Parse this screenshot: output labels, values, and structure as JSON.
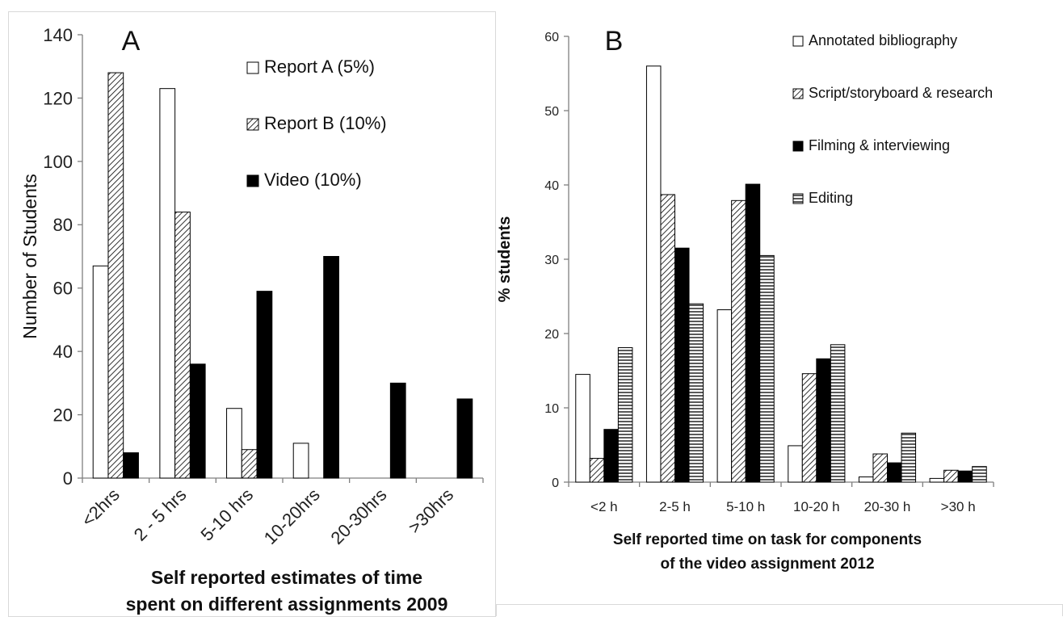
{
  "chart_data": [
    {
      "type": "bar",
      "panel_letter": "A",
      "categories": [
        "<2hrs",
        "2 - 5 hrs",
        "5-10 hrs",
        "10-20hrs",
        "20-30hrs",
        ">30hrs"
      ],
      "series": [
        {
          "name": "Report A (5%)",
          "values": [
            67,
            123,
            22,
            11,
            0,
            0
          ],
          "pattern": "white"
        },
        {
          "name": "Report B (10%)",
          "values": [
            128,
            84,
            9,
            0,
            0,
            0
          ],
          "pattern": "diagonal"
        },
        {
          "name": "Video (10%)",
          "values": [
            8,
            36,
            59,
            70,
            30,
            25
          ],
          "pattern": "black"
        }
      ],
      "ylabel": "Number of Students",
      "xlabel": [
        "Self reported estimates of time",
        "spent on different assignments 2009"
      ],
      "ylim": [
        0,
        140
      ],
      "yticks": [
        0,
        20,
        40,
        60,
        80,
        100,
        120,
        140
      ],
      "grid": false,
      "legend_position": "top-right"
    },
    {
      "type": "bar",
      "panel_letter": "B",
      "categories": [
        "<2 h",
        "2-5 h",
        "5-10 h",
        "10-20 h",
        "20-30 h",
        ">30 h"
      ],
      "series": [
        {
          "name": "Annotated bibliography",
          "values": [
            14.5,
            56,
            23.2,
            4.9,
            0.7,
            0.5
          ],
          "pattern": "white"
        },
        {
          "name": "Script/storyboard & research",
          "values": [
            3.2,
            38.7,
            37.9,
            14.6,
            3.8,
            1.6
          ],
          "pattern": "diagonal"
        },
        {
          "name": "Filming & interviewing",
          "values": [
            7.1,
            31.5,
            40.1,
            16.6,
            2.6,
            1.5
          ],
          "pattern": "black"
        },
        {
          "name": "Editing",
          "values": [
            18.1,
            24,
            30.5,
            18.5,
            6.6,
            2.1
          ],
          "pattern": "horizontal"
        }
      ],
      "ylabel": "% students",
      "xlabel": [
        "Self reported time on task for components",
        "of the video assignment 2012"
      ],
      "ylim": [
        0,
        60
      ],
      "yticks": [
        0,
        10,
        20,
        30,
        40,
        50,
        60
      ],
      "grid": false,
      "legend_position": "top-right"
    }
  ]
}
